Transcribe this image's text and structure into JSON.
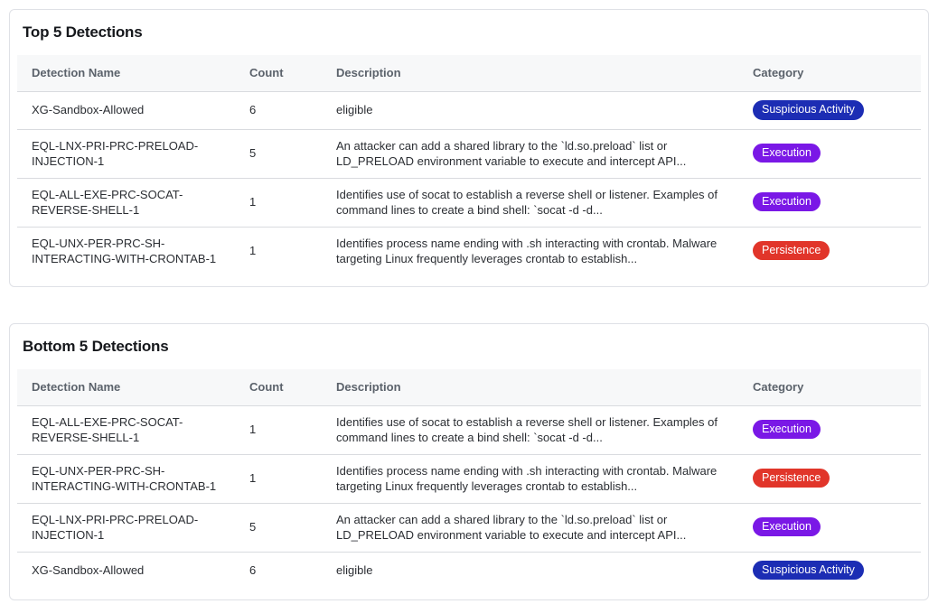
{
  "category_colors": {
    "Suspicious Activity": "#1c2db4",
    "Execution": "#7a18e6",
    "Persistence": "#e1352a"
  },
  "tables": [
    {
      "title": "Top 5 Detections",
      "columns": [
        "Detection Name",
        "Count",
        "Description",
        "Category"
      ],
      "rows": [
        {
          "name": "XG-Sandbox-Allowed",
          "count": 6,
          "description": "eligible",
          "category": "Suspicious Activity"
        },
        {
          "name": "EQL-LNX-PRI-PRC-PRELOAD-INJECTION-1",
          "count": 5,
          "description": "An attacker can add a shared library to the `ld.so.preload` list or LD_PRELOAD environment variable to execute and intercept API...",
          "category": "Execution"
        },
        {
          "name": "EQL-ALL-EXE-PRC-SOCAT-REVERSE-SHELL-1",
          "count": 1,
          "description": "Identifies use of socat to establish a reverse shell or listener. Examples of command lines to create a bind shell: `socat -d -d...",
          "category": "Execution"
        },
        {
          "name": "EQL-UNX-PER-PRC-SH-INTERACTING-WITH-CRONTAB-1",
          "count": 1,
          "description": "Identifies process name ending with .sh interacting with crontab. Malware targeting Linux frequently leverages crontab to establish...",
          "category": "Persistence"
        }
      ]
    },
    {
      "title": "Bottom 5 Detections",
      "columns": [
        "Detection Name",
        "Count",
        "Description",
        "Category"
      ],
      "rows": [
        {
          "name": "EQL-ALL-EXE-PRC-SOCAT-REVERSE-SHELL-1",
          "count": 1,
          "description": "Identifies use of socat to establish a reverse shell or listener. Examples of command lines to create a bind shell: `socat -d -d...",
          "category": "Execution"
        },
        {
          "name": "EQL-UNX-PER-PRC-SH-INTERACTING-WITH-CRONTAB-1",
          "count": 1,
          "description": "Identifies process name ending with .sh interacting with crontab. Malware targeting Linux frequently leverages crontab to establish...",
          "category": "Persistence"
        },
        {
          "name": "EQL-LNX-PRI-PRC-PRELOAD-INJECTION-1",
          "count": 5,
          "description": "An attacker can add a shared library to the `ld.so.preload` list or LD_PRELOAD environment variable to execute and intercept API...",
          "category": "Execution"
        },
        {
          "name": "XG-Sandbox-Allowed",
          "count": 6,
          "description": "eligible",
          "category": "Suspicious Activity"
        }
      ]
    }
  ]
}
